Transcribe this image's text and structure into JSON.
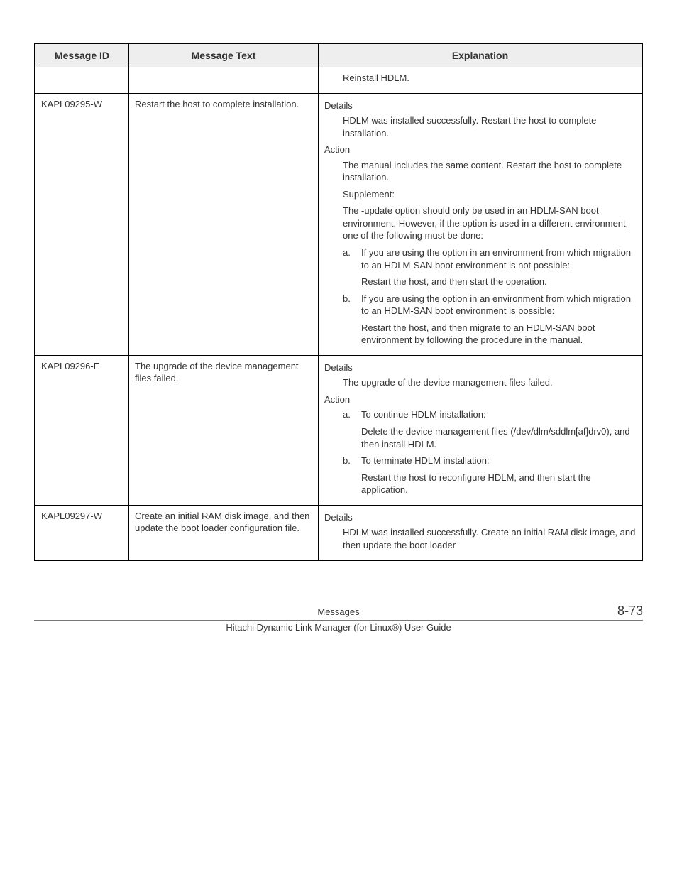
{
  "table": {
    "headers": {
      "id": "Message ID",
      "text": "Message Text",
      "exp": "Explanation"
    },
    "row0": {
      "exp": {
        "line": "Reinstall HDLM."
      }
    },
    "row1": {
      "id": "KAPL09295-W",
      "text": "Restart the host to complete installation.",
      "exp": {
        "details_label": "Details",
        "details_body": "HDLM was installed successfully. Restart the host to complete installation.",
        "action_label": "Action",
        "action_body1": "The manual includes the same content. Restart the host to complete installation.",
        "supplement_label": "Supplement:",
        "supplement_body": "The -update option should only be used in an HDLM-SAN boot environment. However, if the option is used in a different environment, one of the following must be done:",
        "a_marker": "a.",
        "a_body": "If you are using the option in an environment from which migration to an HDLM-SAN boot environment is not possible:",
        "a_after": "Restart the host, and then start the operation.",
        "b_marker": "b.",
        "b_body": "If you are using the option in an environment from which migration to an HDLM-SAN boot environment is possible:",
        "b_after": "Restart the host, and then migrate to an HDLM-SAN boot environment by following the procedure in the manual."
      }
    },
    "row2": {
      "id": "KAPL09296-E",
      "text": "The upgrade of the device management files failed.",
      "exp": {
        "details_label": "Details",
        "details_body": "The upgrade of the device management files failed.",
        "action_label": "Action",
        "a_marker": "a.",
        "a_body": "To continue HDLM installation:",
        "a_after": "Delete the device management files (/dev/dlm/sddlm[af]drv0), and then install HDLM.",
        "b_marker": "b.",
        "b_body": "To terminate HDLM installation:",
        "b_after": "Restart the host to reconfigure HDLM, and then start the application."
      }
    },
    "row3": {
      "id": "KAPL09297-W",
      "text": "Create an initial RAM disk image, and then update the boot loader configuration file.",
      "exp": {
        "details_label": "Details",
        "details_body": "HDLM was installed successfully. Create an initial RAM disk image, and then update the boot loader"
      }
    }
  },
  "footer": {
    "section": "Messages",
    "pageno": "8-73",
    "book": "Hitachi Dynamic Link Manager (for Linux®) User Guide"
  }
}
